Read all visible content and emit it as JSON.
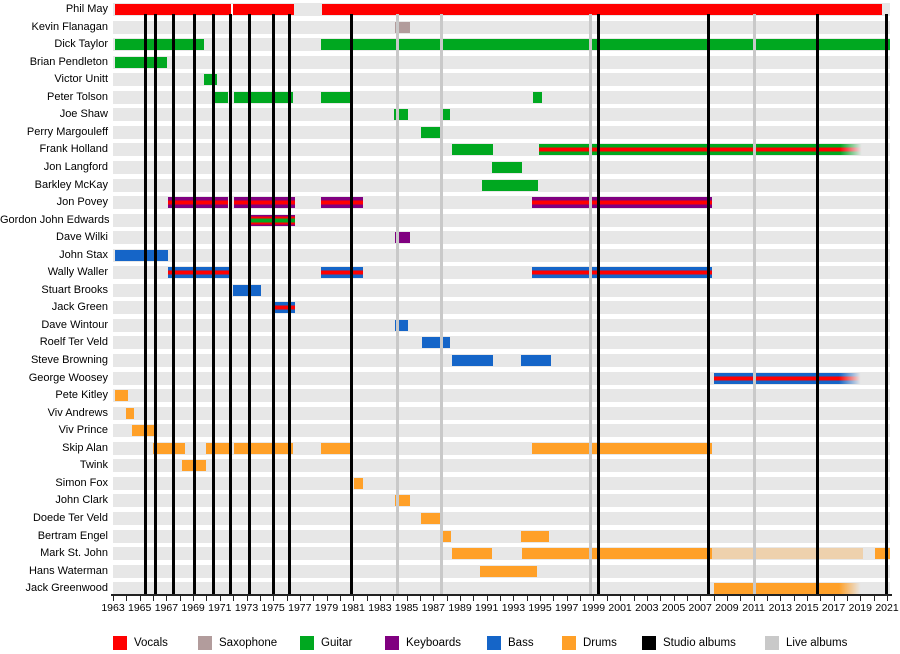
{
  "chart_data": {
    "type": "bar",
    "variant": "timeline-gantt-band-membership",
    "title": "",
    "xlabel": "",
    "ylabel": "",
    "axis": {
      "start_year": 1963,
      "end_year": 2021,
      "minor_tick_step": 1,
      "label_step": 2,
      "tick_labels": [
        1963,
        1965,
        1967,
        1969,
        1971,
        1973,
        1975,
        1977,
        1979,
        1981,
        1983,
        1985,
        1987,
        1989,
        1991,
        1993,
        1995,
        1997,
        1999,
        2001,
        2003,
        2005,
        2007,
        2009,
        2011,
        2013,
        2015,
        2017,
        2019,
        2021
      ]
    },
    "colors": {
      "vocals": "#ff0000",
      "saxophone": "#b29c9c",
      "guitar": "#00a820",
      "keyboards": "#800080",
      "bass": "#1565c8",
      "drums": "#ffa028",
      "studio_albums": "#000000",
      "live_albums": "#c9c9c9",
      "row_stripe": "#e7e7e7"
    },
    "studio_album_years": [
      1965.4,
      1966.15,
      1967.5,
      1969.07,
      1970.5,
      1971.77,
      1973.2,
      1975.0,
      1976.2,
      1980.85,
      1999.35,
      2007.6,
      2015.8,
      2020.95
    ],
    "live_album_years": [
      1984.35,
      1987.6,
      1998.8,
      2011.1
    ],
    "members": [
      {
        "name": "Phil May",
        "role": "vocals",
        "segments": [
          [
            1963.15,
            1971.84,
            "w"
          ],
          [
            1972.0,
            1976.56,
            ""
          ],
          [
            1978.66,
            2020.62,
            ""
          ]
        ]
      },
      {
        "name": "Kevin Flanagan",
        "role": "saxophone",
        "segments": [
          [
            1984.1,
            1985.25,
            ""
          ]
        ]
      },
      {
        "name": "Dick Taylor",
        "role": "guitar",
        "segments": [
          [
            1963.15,
            1969.8,
            ""
          ],
          [
            1978.6,
            2021.2,
            ""
          ]
        ]
      },
      {
        "name": "Brian Pendleton",
        "role": "guitar",
        "segments": [
          [
            1963.15,
            1967.05,
            ""
          ]
        ]
      },
      {
        "name": "Victor Unitt",
        "role": "guitar",
        "segments": [
          [
            1969.8,
            1970.8,
            ""
          ]
        ]
      },
      {
        "name": "Peter Tolson",
        "role": "guitar",
        "segments": [
          [
            1970.5,
            1971.6,
            ""
          ],
          [
            1972.05,
            1976.5,
            ""
          ],
          [
            1978.6,
            1980.9,
            ""
          ],
          [
            1994.5,
            1995.15,
            ""
          ]
        ]
      },
      {
        "name": "Joe Shaw",
        "role": "guitar",
        "segments": [
          [
            1984.05,
            1985.1,
            ""
          ],
          [
            1987.5,
            1988.25,
            ""
          ]
        ]
      },
      {
        "name": "Perry Margouleff",
        "role": "guitar",
        "segments": [
          [
            1986.1,
            1987.6,
            ""
          ]
        ]
      },
      {
        "name": "Frank Holland",
        "role": "guitar",
        "segments": [
          [
            1988.4,
            1991.5,
            ""
          ],
          [
            1994.95,
            2019.3,
            "vf"
          ]
        ]
      },
      {
        "name": "Jon Langford",
        "role": "guitar",
        "segments": [
          [
            1991.4,
            1993.65,
            ""
          ]
        ]
      },
      {
        "name": "Barkley McKay",
        "role": "guitar",
        "segments": [
          [
            1990.65,
            1994.85,
            ""
          ]
        ]
      },
      {
        "name": "Jon Povey",
        "role": "keyboards",
        "segments": [
          [
            1967.1,
            1971.6,
            "v"
          ],
          [
            1972.05,
            1976.65,
            "v"
          ],
          [
            1978.6,
            1981.75,
            "v"
          ],
          [
            1994.4,
            2007.9,
            "v"
          ]
        ]
      },
      {
        "name": "Gordon John Edwards",
        "role": "keyboards",
        "segments": [
          [
            1973.35,
            1976.65,
            "t"
          ]
        ]
      },
      {
        "name": "Dave Wilki",
        "role": "keyboards",
        "segments": [
          [
            1984.1,
            1985.25,
            ""
          ]
        ]
      },
      {
        "name": "John Stax",
        "role": "bass",
        "segments": [
          [
            1963.15,
            1967.1,
            ""
          ]
        ]
      },
      {
        "name": "Wally Waller",
        "role": "bass",
        "segments": [
          [
            1967.1,
            1971.75,
            "v"
          ],
          [
            1978.6,
            1981.75,
            "v"
          ],
          [
            1994.4,
            2007.9,
            "v"
          ]
        ]
      },
      {
        "name": "Stuart Brooks",
        "role": "bass",
        "segments": [
          [
            1972.0,
            1974.1,
            ""
          ]
        ]
      },
      {
        "name": "Jack Green",
        "role": "bass",
        "segments": [
          [
            1975.0,
            1976.65,
            "v"
          ]
        ]
      },
      {
        "name": "Dave Wintour",
        "role": "bass",
        "segments": [
          [
            1984.1,
            1985.1,
            ""
          ]
        ]
      },
      {
        "name": "Roelf Ter Veld",
        "role": "bass",
        "segments": [
          [
            1986.15,
            1988.25,
            ""
          ]
        ]
      },
      {
        "name": "Steve Browning",
        "role": "bass",
        "segments": [
          [
            1988.4,
            1991.5,
            ""
          ],
          [
            1993.6,
            1995.85,
            ""
          ]
        ]
      },
      {
        "name": "George Woosey",
        "role": "bass",
        "segments": [
          [
            2008.0,
            2019.2,
            "vf"
          ]
        ]
      },
      {
        "name": "Pete Kitley",
        "role": "drums",
        "segments": [
          [
            1963.15,
            1964.1,
            ""
          ]
        ]
      },
      {
        "name": "Viv Andrews",
        "role": "drums",
        "segments": [
          [
            1964.0,
            1964.6,
            ""
          ]
        ]
      },
      {
        "name": "Viv Prince",
        "role": "drums",
        "segments": [
          [
            1964.4,
            1966.05,
            ""
          ]
        ]
      },
      {
        "name": "Skip Alan",
        "role": "drums",
        "segments": [
          [
            1966.0,
            1968.4,
            ""
          ],
          [
            1969.95,
            1971.75,
            ""
          ],
          [
            1972.05,
            1976.5,
            ""
          ],
          [
            1978.6,
            1980.9,
            ""
          ],
          [
            1994.4,
            2007.9,
            ""
          ]
        ]
      },
      {
        "name": "Twink",
        "role": "drums",
        "segments": [
          [
            1968.2,
            1969.95,
            ""
          ]
        ]
      },
      {
        "name": "Simon Fox",
        "role": "drums",
        "segments": [
          [
            1981.05,
            1981.75,
            ""
          ]
        ]
      },
      {
        "name": "John Clark",
        "role": "drums",
        "segments": [
          [
            1984.1,
            1985.25,
            ""
          ]
        ]
      },
      {
        "name": "Doede Ter Veld",
        "role": "drums",
        "segments": [
          [
            1986.1,
            1987.7,
            ""
          ]
        ]
      },
      {
        "name": "Bertram Engel",
        "role": "drums",
        "segments": [
          [
            1987.6,
            1988.3,
            ""
          ],
          [
            1993.6,
            1995.65,
            ""
          ]
        ]
      },
      {
        "name": "Mark St. John",
        "role": "drums",
        "segments": [
          [
            1988.4,
            1991.4,
            ""
          ],
          [
            1993.65,
            2007.9,
            ""
          ],
          [
            2007.9,
            2019.2,
            "x"
          ],
          [
            2020.1,
            2021.2,
            ""
          ]
        ]
      },
      {
        "name": "Hans Waterman",
        "role": "drums",
        "segments": [
          [
            1990.5,
            1994.8,
            ""
          ]
        ]
      },
      {
        "name": "Jack Greenwood",
        "role": "drums",
        "segments": [
          [
            2008.0,
            2019.2,
            "f"
          ]
        ]
      }
    ],
    "legend": [
      {
        "label": "Vocals",
        "color": "#ff0000"
      },
      {
        "label": "Saxophone",
        "color": "#b29c9c"
      },
      {
        "label": "Guitar",
        "color": "#00a820"
      },
      {
        "label": "Keyboards",
        "color": "#800080"
      },
      {
        "label": "Bass",
        "color": "#1565c8"
      },
      {
        "label": "Drums",
        "color": "#ffa028"
      },
      {
        "label": "Studio albums",
        "color": "#000000"
      },
      {
        "label": "Live albums",
        "color": "#c9c9c9"
      }
    ]
  }
}
